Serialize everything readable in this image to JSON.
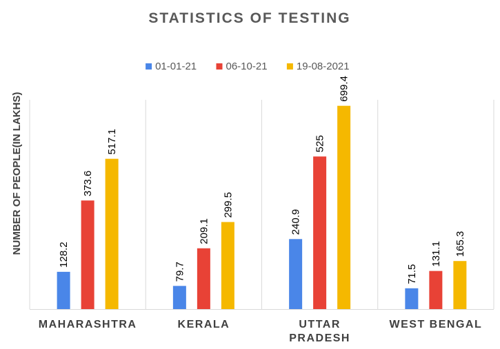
{
  "chart_data": {
    "type": "bar",
    "title": "STATISTICS OF TESTING",
    "xlabel": "",
    "ylabel": "NUMBER OF PEOPLE(IN LAKHS)",
    "categories": [
      [
        "MAHARASHTRA"
      ],
      [
        "KERALA"
      ],
      [
        "UTTAR",
        "PRADESH"
      ],
      [
        "WEST BENGAL"
      ]
    ],
    "series": [
      {
        "name": "01-01-21",
        "color": "#4a86e8",
        "values": [
          128.2,
          79.7,
          240.9,
          71.5
        ]
      },
      {
        "name": "06-10-21",
        "color": "#e84236",
        "values": [
          373.6,
          209.1,
          525,
          131.1
        ]
      },
      {
        "name": "19-08-2021",
        "color": "#f5b800",
        "values": [
          517.1,
          299.5,
          699.4,
          165.3
        ]
      }
    ],
    "ylim": [
      0,
      720
    ],
    "legend_position": "top",
    "grid": "vertical separators between categories",
    "data_label_text": [
      "128.2",
      "79.7",
      "240.9",
      "71.5",
      "373.6",
      "209.1",
      "525",
      "131.1",
      "517.1",
      "299.5",
      "699.4",
      "165.3"
    ]
  }
}
